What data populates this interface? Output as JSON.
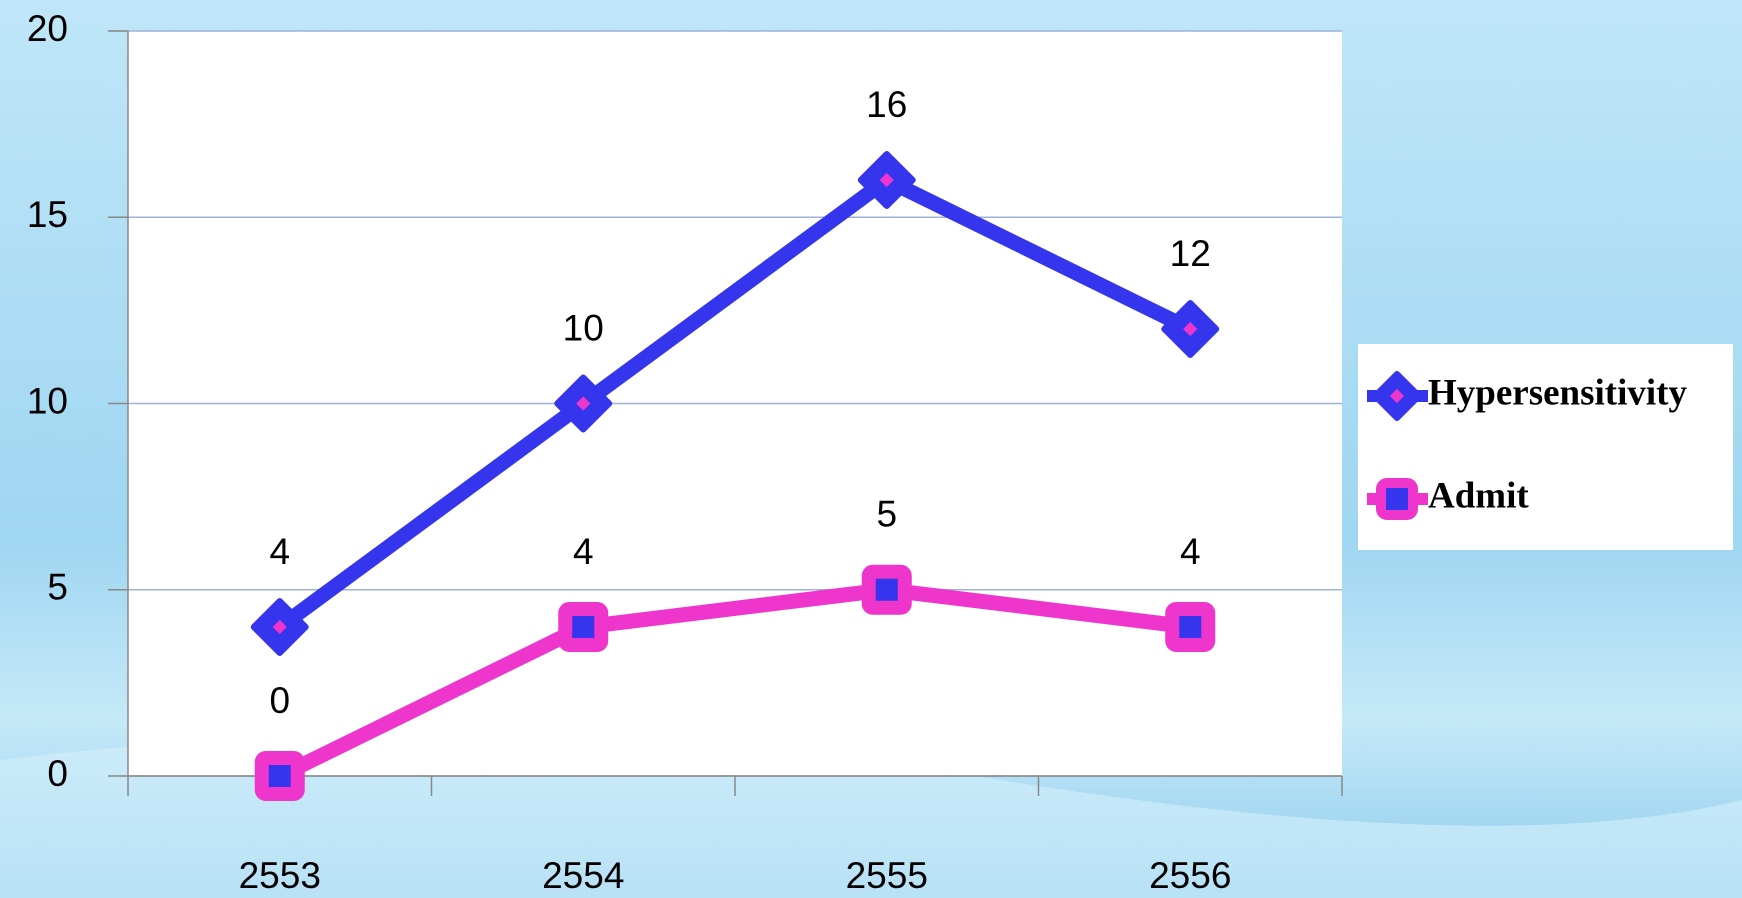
{
  "chart_data": {
    "type": "line",
    "categories": [
      "2553",
      "2554",
      "2555",
      "2556"
    ],
    "series": [
      {
        "name": "Hypersensitivity",
        "color": "#3535ee",
        "marker": "diamond",
        "values": [
          4,
          10,
          16,
          12
        ]
      },
      {
        "name": "Admit",
        "color": "#ee35cc",
        "marker": "square",
        "values": [
          0,
          4,
          5,
          4
        ]
      }
    ],
    "ylim": [
      0,
      20
    ],
    "yticks": [
      0,
      5,
      10,
      15,
      20
    ],
    "grid": true,
    "legend": "right"
  }
}
